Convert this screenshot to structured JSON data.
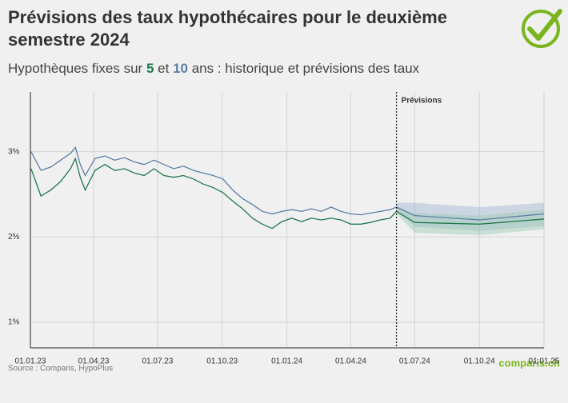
{
  "chart_data": {
    "type": "line",
    "title": "Prévisions des taux hypothécaires pour le deuxième semestre 2024",
    "subtitle_parts": [
      "Hypothèques fixes sur",
      "et",
      "ans : historique et prévisions des taux"
    ],
    "forecast_label": "Prévisions",
    "forecast_start": "2024-06-05",
    "source": "Source : Comparis, HypoPlus",
    "logo": "comparis.ch",
    "x": [
      "2023-01-02",
      "2023-01-16",
      "2023-01-30",
      "2023-02-13",
      "2023-02-27",
      "2023-03-06",
      "2023-03-13",
      "2023-03-20",
      "2023-04-03",
      "2023-04-17",
      "2023-05-01",
      "2023-05-15",
      "2023-05-29",
      "2023-06-12",
      "2023-06-26",
      "2023-07-10",
      "2023-07-24",
      "2023-08-07",
      "2023-08-21",
      "2023-09-04",
      "2023-09-18",
      "2023-10-02",
      "2023-10-16",
      "2023-10-30",
      "2023-11-13",
      "2023-11-27",
      "2023-12-11",
      "2023-12-25",
      "2024-01-08",
      "2024-01-22",
      "2024-02-05",
      "2024-02-19",
      "2024-03-04",
      "2024-03-18",
      "2024-04-01",
      "2024-04-15",
      "2024-04-29",
      "2024-05-13",
      "2024-05-27",
      "2024-06-05"
    ],
    "forecast_x": [
      "2024-06-05",
      "2024-07-01",
      "2024-10-01",
      "2025-01-01"
    ],
    "series": [
      {
        "name": "10",
        "color": "#5b7fa6",
        "band_color": "#9fb4d0",
        "values": [
          3.0,
          2.78,
          2.82,
          2.9,
          2.98,
          3.05,
          2.85,
          2.72,
          2.92,
          2.95,
          2.9,
          2.93,
          2.88,
          2.85,
          2.9,
          2.85,
          2.8,
          2.83,
          2.78,
          2.75,
          2.72,
          2.68,
          2.55,
          2.45,
          2.38,
          2.3,
          2.27,
          2.3,
          2.32,
          2.3,
          2.33,
          2.3,
          2.35,
          2.3,
          2.27,
          2.26,
          2.28,
          2.3,
          2.32,
          2.35
        ],
        "forecast": [
          2.35,
          2.25,
          2.2,
          2.27
        ],
        "forecast_upper": [
          2.4,
          2.4,
          2.35,
          2.4
        ],
        "forecast_lower": [
          2.3,
          2.12,
          2.07,
          2.13
        ]
      },
      {
        "name": "5",
        "color": "#1e7a4f",
        "band_color": "#9cc9b2",
        "values": [
          2.8,
          2.48,
          2.55,
          2.65,
          2.8,
          2.92,
          2.7,
          2.55,
          2.78,
          2.85,
          2.78,
          2.8,
          2.75,
          2.72,
          2.8,
          2.72,
          2.7,
          2.72,
          2.68,
          2.62,
          2.58,
          2.52,
          2.42,
          2.33,
          2.22,
          2.15,
          2.1,
          2.18,
          2.22,
          2.18,
          2.22,
          2.2,
          2.22,
          2.2,
          2.15,
          2.15,
          2.17,
          2.2,
          2.22,
          2.3
        ],
        "forecast": [
          2.3,
          2.17,
          2.15,
          2.21
        ],
        "forecast_upper": [
          2.33,
          2.28,
          2.25,
          2.32
        ],
        "forecast_lower": [
          2.27,
          2.05,
          2.02,
          2.09
        ]
      }
    ],
    "xlim": [
      "2023-01-01",
      "2025-01-01"
    ],
    "xticks": [
      {
        "value": "2023-01-01",
        "label": "01.01.23"
      },
      {
        "value": "2023-04-01",
        "label": "01.04.23"
      },
      {
        "value": "2023-07-01",
        "label": "01.07.23"
      },
      {
        "value": "2023-10-01",
        "label": "01.10.23"
      },
      {
        "value": "2024-01-01",
        "label": "01.01.24"
      },
      {
        "value": "2024-04-01",
        "label": "01.04.24"
      },
      {
        "value": "2024-07-01",
        "label": "01.07.24"
      },
      {
        "value": "2024-10-01",
        "label": "01.10.24"
      },
      {
        "value": "2025-01-01",
        "label": "01.01.25"
      }
    ],
    "ylim": [
      0.7,
      3.7
    ],
    "yticks": [
      {
        "value": 1,
        "label": "1%"
      },
      {
        "value": 2,
        "label": "2%"
      },
      {
        "value": 3,
        "label": "3%"
      }
    ],
    "grid": true
  }
}
